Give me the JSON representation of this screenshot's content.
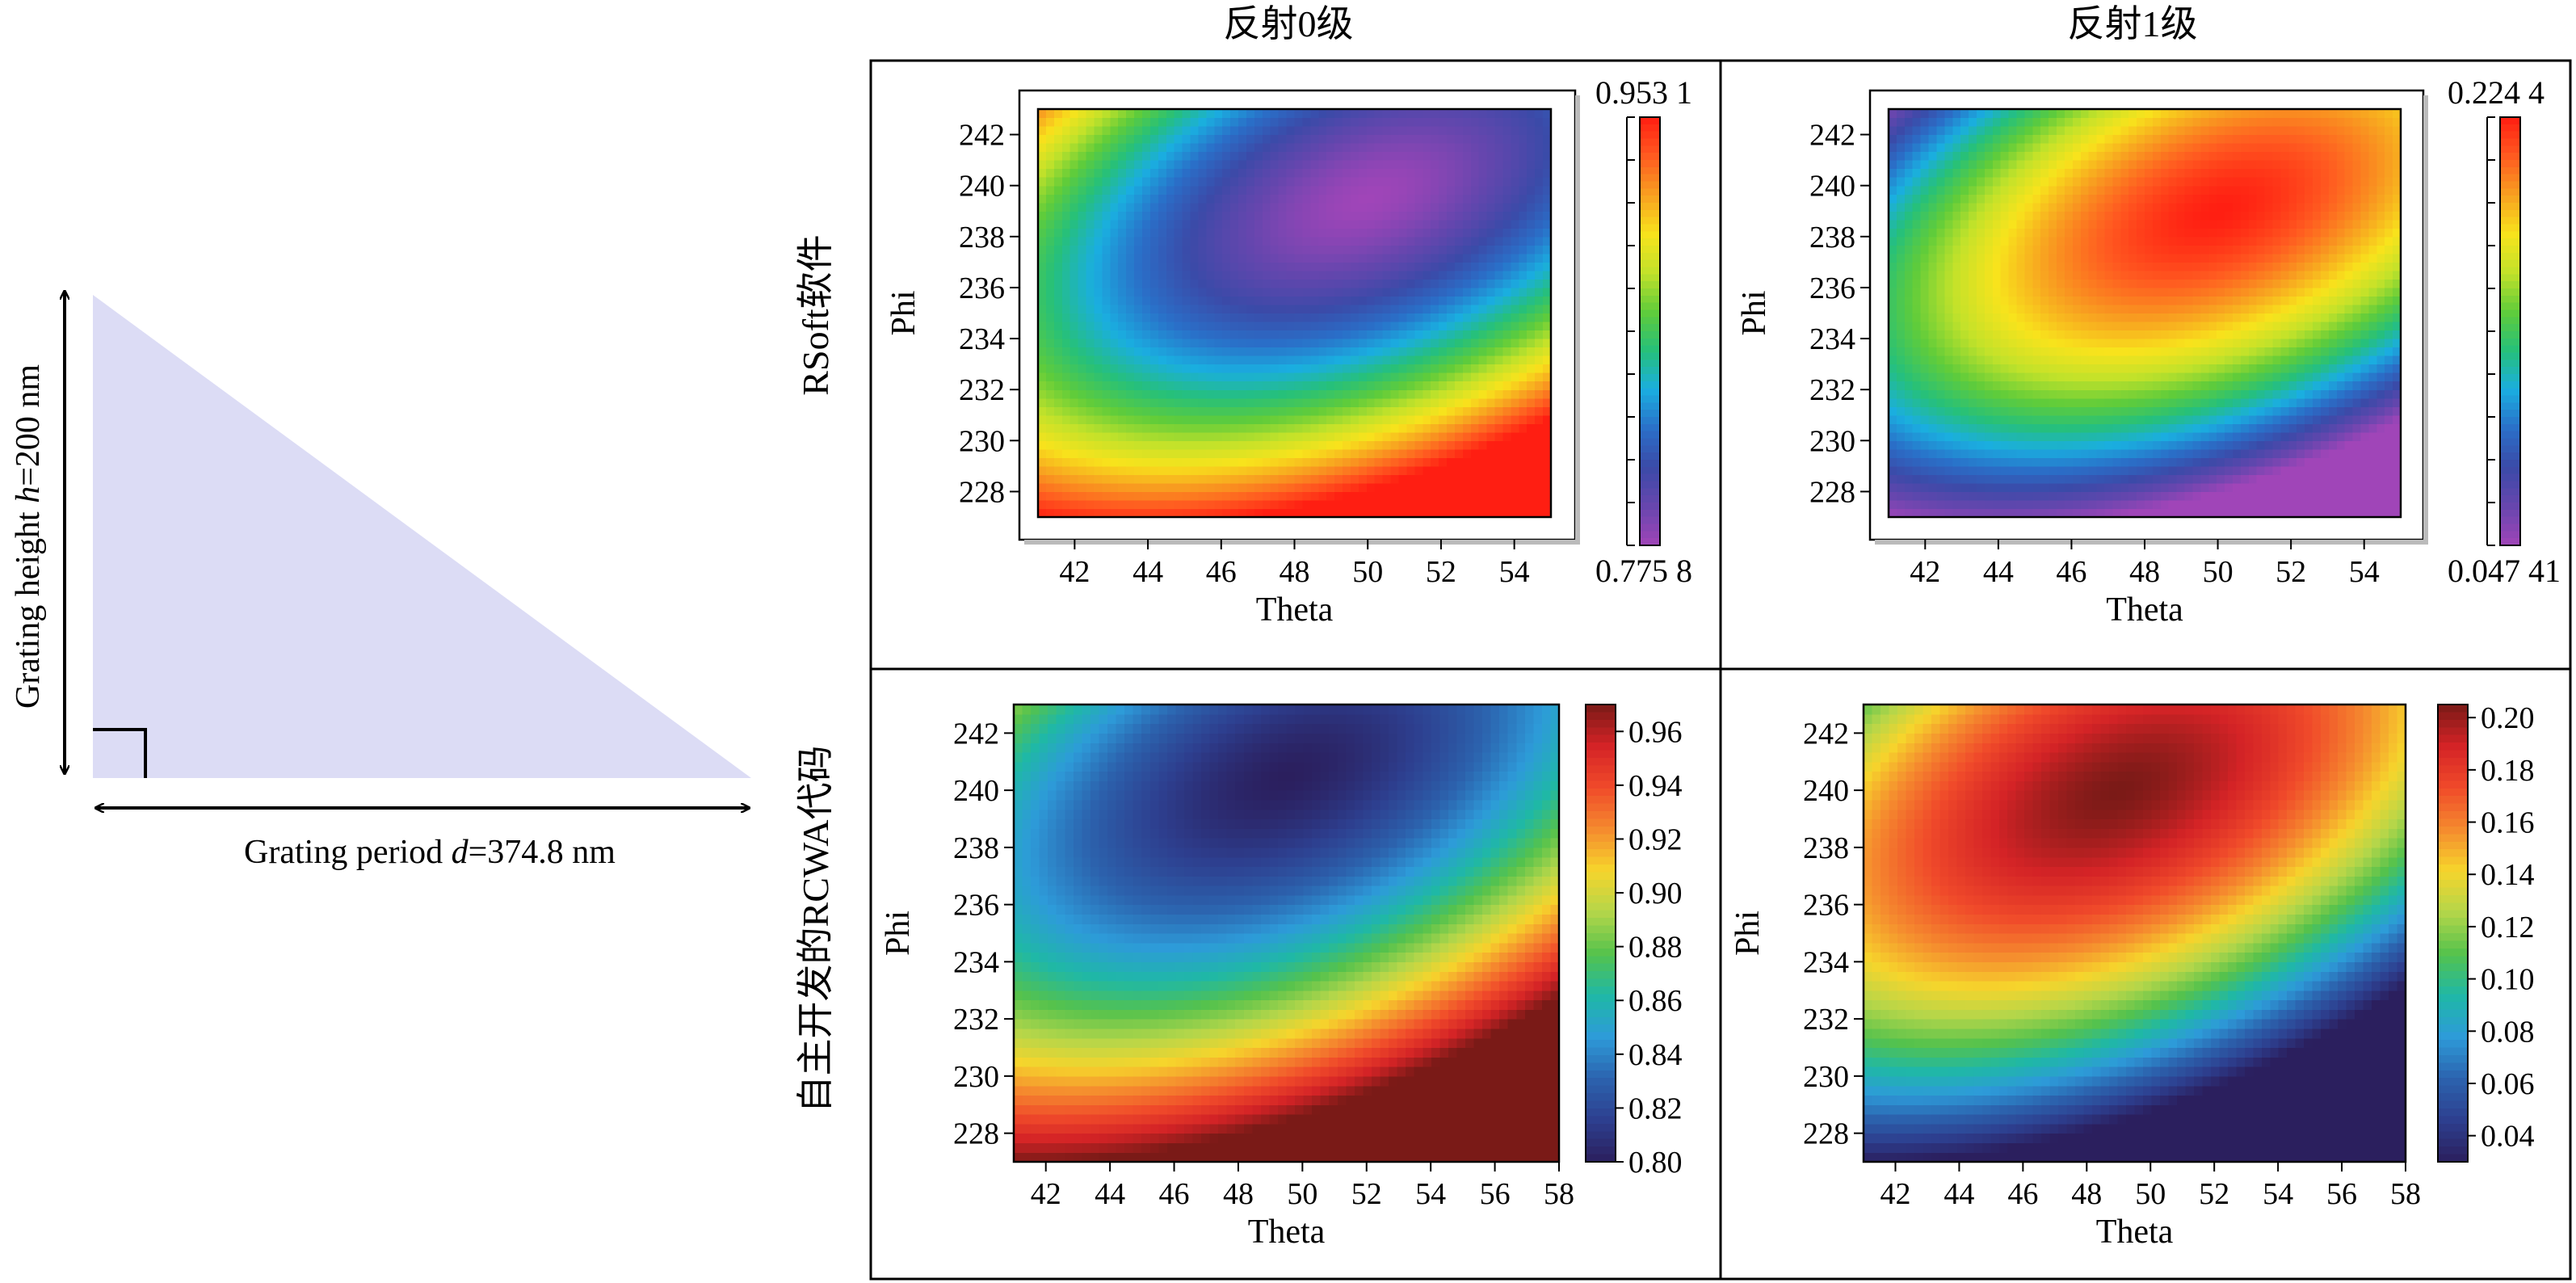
{
  "colors": {
    "triangle_fill": "#dcdcf5",
    "jet": [
      "#7a1a17",
      "#d42326",
      "#f04a2a",
      "#f58a2e",
      "#f6d52c",
      "#b4d64a",
      "#55c24c",
      "#1fb8a6",
      "#2d9bd9",
      "#2c63ae",
      "#2d3f8f",
      "#2b1f5e"
    ],
    "jet_rsoft": [
      "#ff1e12",
      "#ff5a20",
      "#f8a020",
      "#f8e31c",
      "#c2e22a",
      "#60cc3a",
      "#26c07a",
      "#1aaee0",
      "#2a6fc8",
      "#3b4aa8",
      "#6746ae",
      "#a045b8"
    ]
  },
  "diagram": {
    "height_label": "Grating height",
    "height_var": "h",
    "height_value": "=200 nm",
    "period_label": "Grating period ",
    "period_var": "d",
    "period_value": "=374.8 nm"
  },
  "column_titles": [
    "反射0级",
    "反射1级"
  ],
  "row_titles": [
    "RSoft软件",
    "自主开发的RCWA代码"
  ],
  "chart_data": [
    {
      "type": "heatmap",
      "title": "RSoft软件 · 反射0级",
      "xlabel": "Theta",
      "ylabel": "Phi",
      "xticks": [
        42,
        44,
        46,
        48,
        50,
        52,
        54
      ],
      "yticks": [
        228,
        230,
        232,
        234,
        236,
        238,
        240,
        242
      ],
      "xlim": [
        41,
        55
      ],
      "ylim": [
        227,
        243
      ],
      "colorbar_min_label": "0.775 8",
      "colorbar_max_label": "0.953 1",
      "colorbar_range": [
        0.7758,
        0.9531
      ],
      "peak": {
        "theta": 50,
        "phi": 239.5,
        "value": 0.7758
      },
      "corner_value": 0.9531
    },
    {
      "type": "heatmap",
      "title": "RSoft软件 · 反射1级",
      "xlabel": "Theta",
      "ylabel": "Phi",
      "xticks": [
        42,
        44,
        46,
        48,
        50,
        52,
        54
      ],
      "yticks": [
        228,
        230,
        232,
        234,
        236,
        238,
        240,
        242
      ],
      "xlim": [
        41,
        55
      ],
      "ylim": [
        227,
        243
      ],
      "colorbar_min_label": "0.047 41",
      "colorbar_max_label": "0.224 4",
      "colorbar_range": [
        0.04741,
        0.2244
      ],
      "peak": {
        "theta": 50,
        "phi": 239,
        "value": 0.2244
      },
      "corner_value": 0.04741
    },
    {
      "type": "heatmap",
      "title": "自主开发的RCWA代码 · 反射0级",
      "xlabel": "Theta",
      "ylabel": "Phi",
      "xticks": [
        42,
        44,
        46,
        48,
        50,
        52,
        54,
        56,
        58
      ],
      "yticks": [
        228,
        230,
        232,
        234,
        236,
        238,
        240,
        242
      ],
      "xlim": [
        41,
        58
      ],
      "ylim": [
        227,
        243
      ],
      "colorbar_ticks": [
        "0.80",
        "0.82",
        "0.84",
        "0.86",
        "0.88",
        "0.90",
        "0.92",
        "0.94",
        "0.96"
      ],
      "colorbar_range": [
        0.8,
        0.97
      ],
      "peak": {
        "theta": 49.5,
        "phi": 240.5,
        "value": 0.8
      },
      "corner_value": 0.97
    },
    {
      "type": "heatmap",
      "title": "自主开发的RCWA代码 · 反射1级",
      "xlabel": "Theta",
      "ylabel": "Phi",
      "xticks": [
        42,
        44,
        46,
        48,
        50,
        52,
        54,
        56,
        58
      ],
      "yticks": [
        228,
        230,
        232,
        234,
        236,
        238,
        240,
        242
      ],
      "xlim": [
        41,
        58
      ],
      "ylim": [
        227,
        243
      ],
      "colorbar_ticks": [
        "0.04",
        "0.06",
        "0.08",
        "0.10",
        "0.12",
        "0.14",
        "0.16",
        "0.18",
        "0.20"
      ],
      "colorbar_range": [
        0.03,
        0.205
      ],
      "peak": {
        "theta": 49,
        "phi": 240,
        "value": 0.205
      },
      "corner_value": 0.03
    }
  ]
}
